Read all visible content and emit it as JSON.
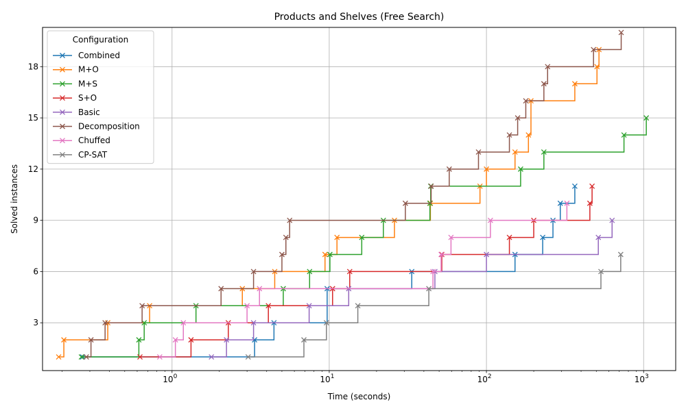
{
  "chart_data": {
    "type": "line",
    "title": "Products and Shelves (Free Search)",
    "xlabel": "Time (seconds)",
    "ylabel": "Solved instances",
    "xscale": "log",
    "xlim": [
      0.15,
      1600
    ],
    "ylim": [
      0.2,
      20.3
    ],
    "xticks": [
      {
        "value": 1,
        "label": "10",
        "exp": "0"
      },
      {
        "value": 10,
        "label": "10",
        "exp": "1"
      },
      {
        "value": 100,
        "label": "10",
        "exp": "2"
      },
      {
        "value": 1000,
        "label": "10",
        "exp": "3"
      }
    ],
    "yticks": [
      3,
      6,
      9,
      12,
      15,
      18
    ],
    "grid": true,
    "legend": {
      "title": "Configuration",
      "position": "top-left"
    },
    "series": [
      {
        "name": "Combined",
        "color": "#1f77b4",
        "x": [
          0.27,
          3.35,
          4.45,
          9.7,
          33.5,
          152,
          228,
          265,
          295,
          365
        ],
        "y": [
          1,
          2,
          3,
          5,
          6,
          7,
          8,
          9,
          10,
          11
        ]
      },
      {
        "name": "M+O",
        "color": "#ff7f0e",
        "x": [
          0.19,
          0.205,
          0.39,
          0.72,
          2.8,
          4.5,
          9.4,
          11.2,
          26,
          44,
          91,
          100,
          152,
          185,
          192,
          365,
          505,
          520
        ],
        "y": [
          1,
          2,
          3,
          4,
          5,
          6,
          7,
          8,
          9,
          10,
          11,
          12,
          13,
          14,
          16,
          17,
          18,
          19
        ]
      },
      {
        "name": "M+S",
        "color": "#2ca02c",
        "x": [
          0.265,
          0.615,
          0.665,
          1.42,
          5.1,
          7.5,
          10.1,
          16.1,
          22.1,
          43.7,
          44.2,
          165,
          232,
          750,
          1040
        ],
        "y": [
          1,
          2,
          3,
          4,
          5,
          6,
          7,
          8,
          9,
          10,
          11,
          12,
          13,
          14,
          15
        ]
      },
      {
        "name": "S+O",
        "color": "#d62728",
        "x": [
          0.625,
          1.32,
          2.28,
          4.1,
          10.5,
          13.5,
          52,
          140,
          200,
          455,
          470
        ],
        "y": [
          1,
          2,
          3,
          4,
          5,
          6,
          7,
          8,
          9,
          10,
          11
        ]
      },
      {
        "name": "Basic",
        "color": "#9467bd",
        "x": [
          1.78,
          2.22,
          3.3,
          7.45,
          13.3,
          47,
          100,
          515,
          630
        ],
        "y": [
          1,
          2,
          3,
          4,
          5,
          6,
          7,
          8,
          9
        ]
      },
      {
        "name": "Decomposition",
        "color": "#8c564b",
        "x": [
          0.285,
          0.305,
          0.375,
          0.645,
          2.05,
          3.3,
          5.0,
          5.3,
          5.6,
          30.5,
          44.5,
          58,
          89,
          140,
          158,
          178,
          232,
          245,
          480,
          720
        ],
        "y": [
          1,
          2,
          3,
          4,
          5,
          6,
          7,
          8,
          9,
          10,
          11,
          12,
          13,
          14,
          15,
          16,
          17,
          18,
          19,
          20
        ]
      },
      {
        "name": "Chuffed",
        "color": "#e377c2",
        "x": [
          0.835,
          1.05,
          1.18,
          3.0,
          3.6,
          45.7,
          51.5,
          59.5,
          106,
          325
        ],
        "y": [
          1,
          2,
          3,
          4,
          5,
          6,
          7,
          8,
          9,
          10
        ]
      },
      {
        "name": "CP-SAT",
        "color": "#7f7f7f",
        "x": [
          3.05,
          6.9,
          9.6,
          15.2,
          43,
          535,
          715
        ],
        "y": [
          1,
          2,
          3,
          4,
          5,
          6,
          7
        ]
      }
    ]
  }
}
